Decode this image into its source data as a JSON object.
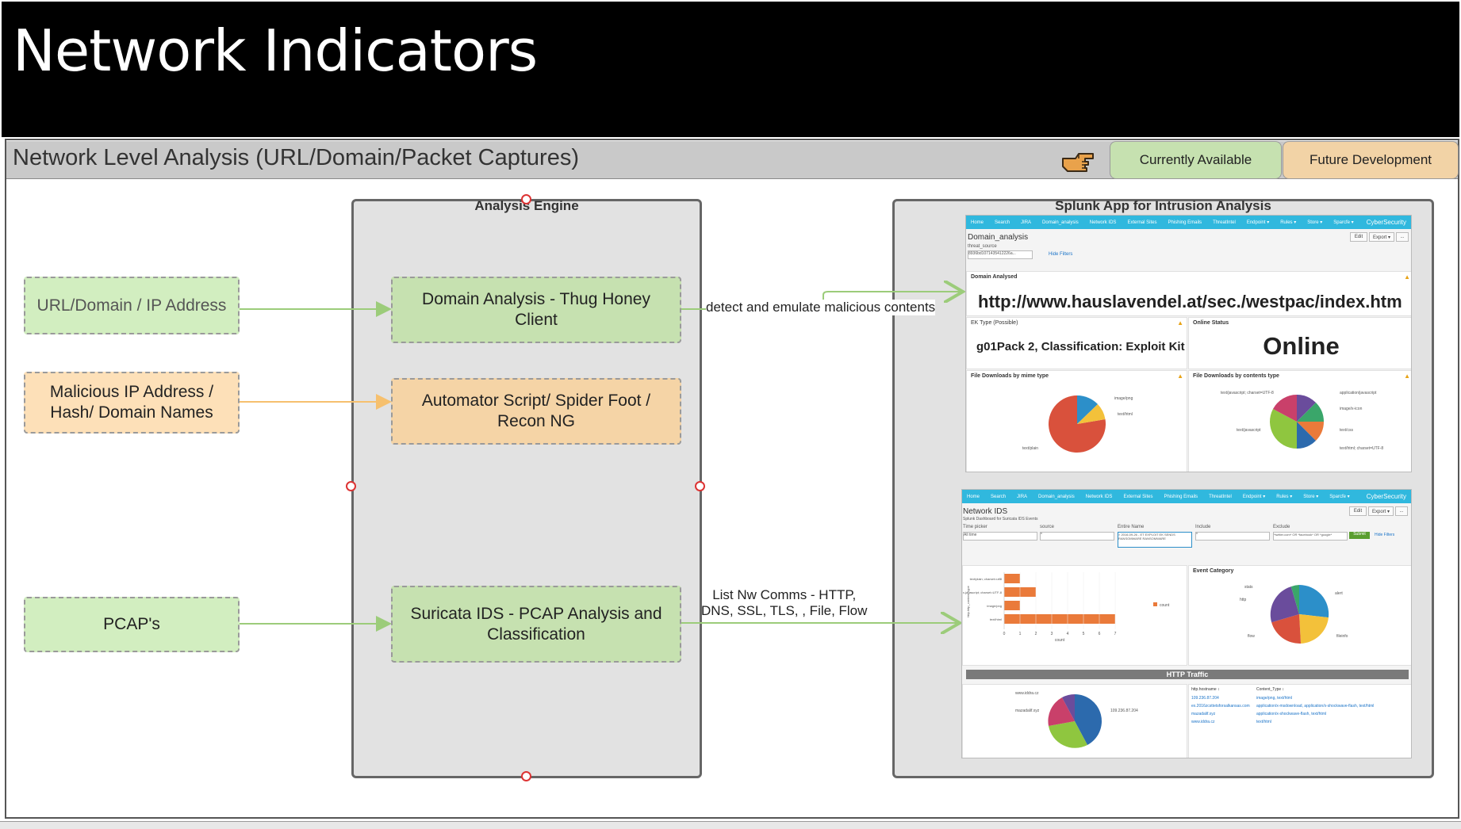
{
  "slide": {
    "title": "Network Indicators",
    "section_title": "Network Level Analysis (URL/Domain/Packet Captures)",
    "pointer_icon": "pointing-hand-icon"
  },
  "legend": {
    "available": "Currently Available",
    "future": "Future Development",
    "colors": {
      "available": "#c6e1b0",
      "future": "#f2d3a6"
    }
  },
  "inputs": {
    "url": "URL/Domain / IP Address",
    "malicious": "Malicious IP Address / Hash/ Domain Names",
    "pcap": "PCAP's"
  },
  "engine": {
    "title": "Analysis Engine",
    "domain": "Domain Analysis - Thug Honey Client",
    "automator": "Automator Script/ Spider Foot / Recon NG",
    "suricata": "Suricata IDS - PCAP Analysis and Classification"
  },
  "edges": {
    "detect": "detect and emulate malicious contents",
    "list_line1": "List Nw Comms - HTTP,",
    "list_line2": "DNS, SSL, TLS, , File, Flow"
  },
  "splunk": {
    "title": "Splunk App for Intrusion Analysis",
    "nav": [
      "Home",
      "Search",
      "JIRA",
      "Domain_analysis",
      "Network IDS",
      "External Sites",
      "Phishing Emails",
      "ThreatIntel",
      "Endpoint ▾",
      "Rules ▾",
      "Store ▾",
      "Sparcfe ▾"
    ],
    "brand": "CyberSecurity",
    "dash1": {
      "name": "Domain_analysis",
      "field_label": "threat_source",
      "field_value": "8936bd1071435412226a...",
      "hide_filters": "Hide Filters",
      "edit": "Edit",
      "export": "Export ▾",
      "more": "...",
      "domain_panel": "Domain Analysed",
      "url": "http://www.hauslavendel.at/sec./westpac/index.htm",
      "ek_panel": "EK Type (Possible)",
      "ek_value": "g01Pack 2, Classification: Exploit Kit",
      "status_panel": "Online Status",
      "status_value": "Online",
      "mime_panel": "File Downloads by mime type",
      "mime_labels": [
        "image/png",
        "text/html",
        "text/plain"
      ],
      "ctype_panel": "File Downloads by contents type",
      "ctype_labels": [
        "text/javascript; charset=UTF-8",
        "application/javascript",
        "image/x-icon",
        "text/css",
        "text/javascript",
        "text/html; charset=UTF-8"
      ]
    },
    "dash2": {
      "name": "Network IDS",
      "subtitle": "Splunk Dashboard for Suricata IDS Events",
      "filters": [
        "Time picker",
        "source",
        "Entire Name",
        "Include",
        "Exclude"
      ],
      "time_value": "All time",
      "source_value": "*",
      "entire_value": "× 2016-09-26 - ET EXPLOIT EK SENDS RANSOMWARE RANSOMWARE",
      "include_value": "*",
      "exclude_value": "*twitter.com* OR *facebook* OR *google*",
      "submit": "Submit",
      "hide_filters": "Hide Filters",
      "edit": "Edit",
      "export": "Export ▾",
      "more": "...",
      "bar_axis_label": "http.http_content_type",
      "bar_categories": [
        "text/plain; charset=utf8",
        "application/x-javascript; charset=UTF-8",
        "image/png",
        "text/html"
      ],
      "bar_values": [
        1,
        2,
        1,
        7
      ],
      "bar_xticks": [
        "0",
        "1",
        "2",
        "3",
        "4",
        "5",
        "6",
        "7"
      ],
      "bar_xlabel": "count",
      "bar_legend": "count",
      "event_panel": "Event Category",
      "event_labels": [
        "stats",
        "http",
        "alert",
        "flow",
        "fileinfo"
      ],
      "http_banner": "HTTP Traffic",
      "host_labels": [
        "www.iddra.cz",
        "mazadalif.xyz",
        "109.236.87.204"
      ],
      "table_headers": [
        "http.hostname ↕",
        "Content_Type ↕"
      ],
      "table_rows": [
        [
          "109.236.87.204",
          "image/png, text/html"
        ],
        [
          "ex.2016zcsttetsforsalkansas.com",
          "application/x-msdownload, application/x-shockwave-flash, text/html"
        ],
        [
          "mazadalif.xyz",
          "application/x-shockwave-flash, text/html"
        ],
        [
          "www.iddra.cz",
          "text/html"
        ]
      ]
    }
  }
}
